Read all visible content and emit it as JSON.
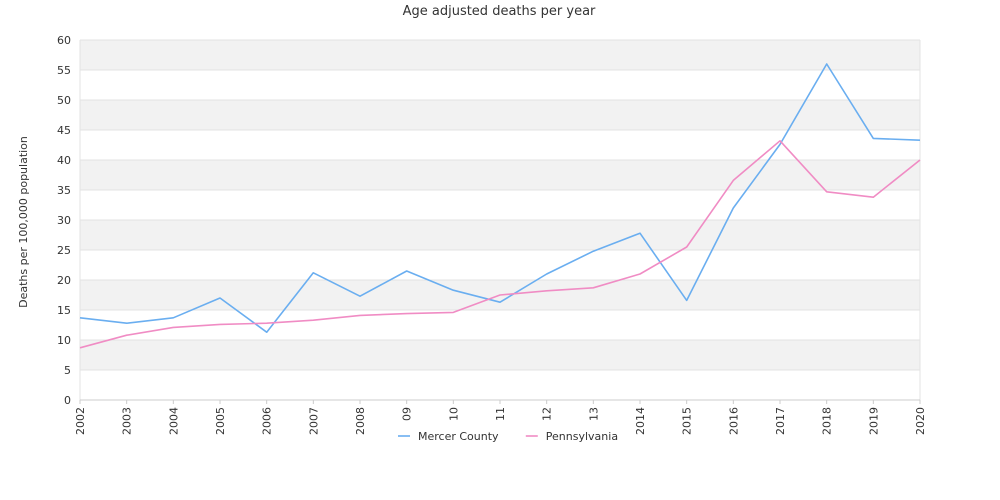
{
  "chart_data": {
    "type": "line",
    "title": "Age adjusted deaths per year",
    "xlabel": "",
    "ylabel": "Deaths per 100,000 population",
    "categories": [
      "2002",
      "2003",
      "2004",
      "2005",
      "2006",
      "2007",
      "2008",
      "09",
      "10",
      "11",
      "12",
      "13",
      "2014",
      "2015",
      "2016",
      "2017",
      "2018",
      "2019",
      "2020"
    ],
    "ylim": [
      0,
      60
    ],
    "yticks": [
      0,
      5,
      10,
      15,
      20,
      25,
      30,
      35,
      40,
      45,
      50,
      55,
      60
    ],
    "grid": "alternating horizontal bands",
    "legend_position": "bottom",
    "series": [
      {
        "name": "Mercer County",
        "color": "#6aaef0",
        "values": [
          13.7,
          12.8,
          13.7,
          17.0,
          11.3,
          21.2,
          17.3,
          21.5,
          18.3,
          16.3,
          21.0,
          24.8,
          27.8,
          16.6,
          32.0,
          42.6,
          56.0,
          43.6,
          43.3
        ]
      },
      {
        "name": "Pennsylvania",
        "color": "#f08cc4",
        "values": [
          8.7,
          10.8,
          12.1,
          12.6,
          12.8,
          13.3,
          14.1,
          14.4,
          14.6,
          17.5,
          18.2,
          18.7,
          21.0,
          25.5,
          36.6,
          43.2,
          34.7,
          33.8,
          40.0
        ]
      }
    ]
  }
}
